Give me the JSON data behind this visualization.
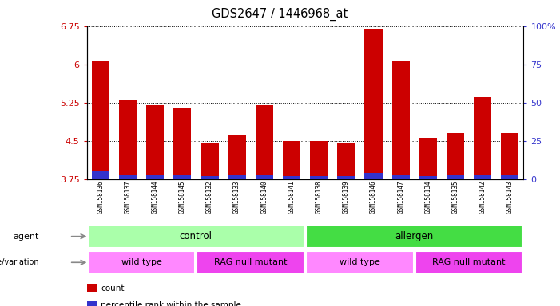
{
  "title": "GDS2647 / 1446968_at",
  "samples": [
    "GSM158136",
    "GSM158137",
    "GSM158144",
    "GSM158145",
    "GSM158132",
    "GSM158133",
    "GSM158140",
    "GSM158141",
    "GSM158138",
    "GSM158139",
    "GSM158146",
    "GSM158147",
    "GSM158134",
    "GSM158135",
    "GSM158142",
    "GSM158143"
  ],
  "count_values": [
    6.05,
    5.3,
    5.2,
    5.15,
    4.45,
    4.6,
    5.2,
    4.5,
    4.5,
    4.45,
    6.7,
    6.05,
    4.55,
    4.65,
    5.35,
    4.65
  ],
  "percentile_heights": [
    0.15,
    0.08,
    0.07,
    0.07,
    0.06,
    0.07,
    0.07,
    0.06,
    0.06,
    0.06,
    0.12,
    0.08,
    0.06,
    0.07,
    0.09,
    0.07
  ],
  "ymin": 3.75,
  "ymax": 6.75,
  "yticks": [
    3.75,
    4.5,
    5.25,
    6.0,
    6.75
  ],
  "ytick_labels": [
    "3.75",
    "4.5",
    "5.25",
    "6",
    "6.75"
  ],
  "right_yticks_pct": [
    0,
    25,
    50,
    75,
    100
  ],
  "right_ytick_labels": [
    "0",
    "25",
    "50",
    "75",
    "100%"
  ],
  "bar_color": "#cc0000",
  "percentile_color": "#3333cc",
  "bar_width": 0.65,
  "tick_color_left": "#cc0000",
  "tick_color_right": "#3333cc",
  "agent_groups": [
    {
      "text": "control",
      "start": 0,
      "end": 7,
      "color": "#aaffaa"
    },
    {
      "text": "allergen",
      "start": 8,
      "end": 15,
      "color": "#44dd44"
    }
  ],
  "genotype_groups": [
    {
      "text": "wild type",
      "start": 0,
      "end": 3,
      "color": "#ff88ff"
    },
    {
      "text": "RAG null mutant",
      "start": 4,
      "end": 7,
      "color": "#ee44ee"
    },
    {
      "text": "wild type",
      "start": 8,
      "end": 11,
      "color": "#ff88ff"
    },
    {
      "text": "RAG null mutant",
      "start": 12,
      "end": 15,
      "color": "#ee44ee"
    }
  ],
  "legend_items": [
    {
      "color": "#cc0000",
      "label": "count"
    },
    {
      "color": "#3333cc",
      "label": "percentile rank within the sample"
    }
  ],
  "n_samples": 16
}
